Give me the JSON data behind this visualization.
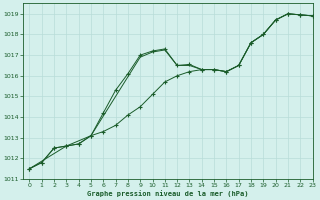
{
  "title": "Graphe pression niveau de la mer (hPa)",
  "background_color": "#d4f0ec",
  "grid_color": "#b8ddd8",
  "line_color": "#1a5c2a",
  "marker_color": "#1a5c2a",
  "xlim": [
    -0.5,
    23
  ],
  "ylim": [
    1011,
    1019.5
  ],
  "xticks": [
    0,
    1,
    2,
    3,
    4,
    5,
    6,
    7,
    8,
    9,
    10,
    11,
    12,
    13,
    14,
    15,
    16,
    17,
    18,
    19,
    20,
    21,
    22,
    23
  ],
  "yticks": [
    1011,
    1012,
    1013,
    1014,
    1015,
    1016,
    1017,
    1018,
    1019
  ],
  "series1_x": [
    0,
    1,
    2,
    3,
    4,
    5,
    6,
    7,
    8,
    9,
    10,
    11,
    12,
    13,
    14,
    15,
    16,
    17,
    18,
    19,
    20,
    21,
    22,
    23
  ],
  "series1_y": [
    1011.5,
    1011.8,
    1012.5,
    1012.6,
    1012.7,
    1013.1,
    1014.2,
    1015.3,
    1016.1,
    1017.0,
    1017.2,
    1017.3,
    1016.5,
    1016.55,
    1016.3,
    1016.3,
    1016.2,
    1016.5,
    1017.6,
    1018.0,
    1018.7,
    1019.0,
    1018.95,
    1018.9
  ],
  "series2_x": [
    0,
    1,
    2,
    3,
    4,
    5,
    6,
    7,
    8,
    9,
    10,
    11,
    12,
    13,
    14,
    15,
    16,
    17,
    18,
    19,
    20,
    21,
    22,
    23
  ],
  "series2_y": [
    1011.5,
    1011.8,
    1012.5,
    1012.6,
    1012.7,
    1013.1,
    1013.3,
    1013.6,
    1014.1,
    1014.5,
    1015.1,
    1015.7,
    1016.0,
    1016.2,
    1016.3,
    1016.3,
    1016.2,
    1016.5,
    1017.6,
    1018.0,
    1018.7,
    1019.0,
    1018.95,
    1018.9
  ],
  "series3_x": [
    0,
    3,
    5,
    7,
    9,
    10,
    11,
    12,
    13,
    14,
    15,
    16,
    17,
    18,
    19,
    20,
    21,
    22,
    23
  ],
  "series3_y": [
    1011.5,
    1012.6,
    1013.1,
    1015.0,
    1016.9,
    1017.15,
    1017.25,
    1016.5,
    1016.5,
    1016.3,
    1016.3,
    1016.2,
    1016.5,
    1017.6,
    1018.0,
    1018.7,
    1019.0,
    1018.95,
    1018.9
  ]
}
